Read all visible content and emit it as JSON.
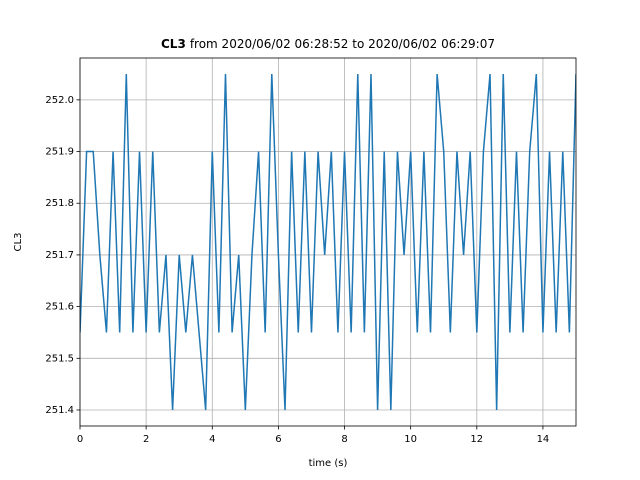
{
  "chart_data": {
    "type": "line",
    "title": [
      "CL3",
      "from 2020/06/02 06:28:52 to 2020/06/02 06:29:07"
    ],
    "xlabel": "time (s)",
    "ylabel": "CL3",
    "x": [
      0,
      0.2,
      0.4,
      0.6,
      0.8,
      1,
      1.2,
      1.4,
      1.6,
      1.8,
      2,
      2.2,
      2.4,
      2.6,
      2.8,
      3,
      3.2,
      3.4,
      3.6,
      3.8,
      4,
      4.2,
      4.4,
      4.6,
      4.8,
      5,
      5.2,
      5.4,
      5.6,
      5.8,
      6,
      6.2,
      6.4,
      6.6,
      6.8,
      7,
      7.2,
      7.4,
      7.6,
      7.8,
      8,
      8.2,
      8.4,
      8.6,
      8.8,
      9,
      9.2,
      9.4,
      9.6,
      9.8,
      10,
      10.2,
      10.4,
      10.6,
      10.8,
      11,
      11.2,
      11.4,
      11.6,
      11.8,
      12,
      12.2,
      12.4,
      12.6,
      12.8,
      13,
      13.2,
      13.4,
      13.6,
      13.8,
      14,
      14.2,
      14.4,
      14.6,
      14.8,
      15
    ],
    "series": [
      {
        "name": "CL3",
        "color": "#1f77b4",
        "values": [
          251.55,
          251.9,
          251.9,
          251.7,
          251.55,
          251.9,
          251.55,
          252.05,
          251.55,
          251.9,
          251.55,
          251.9,
          251.55,
          251.7,
          251.4,
          251.7,
          251.55,
          251.7,
          251.55,
          251.4,
          251.9,
          251.55,
          252.05,
          251.55,
          251.7,
          251.4,
          251.7,
          251.9,
          251.55,
          252.05,
          251.7,
          251.4,
          251.9,
          251.55,
          251.9,
          251.55,
          251.9,
          251.7,
          251.9,
          251.55,
          251.9,
          251.55,
          252.05,
          251.55,
          252.05,
          251.4,
          251.9,
          251.4,
          251.9,
          251.7,
          251.9,
          251.55,
          251.9,
          251.55,
          252.05,
          251.9,
          251.55,
          251.9,
          251.7,
          251.9,
          251.55,
          251.9,
          252.05,
          251.4,
          252.05,
          251.55,
          251.9,
          251.55,
          251.9,
          252.05,
          251.55,
          251.9,
          251.55,
          251.9,
          251.55,
          252.05
        ]
      }
    ],
    "xlim": [
      0,
      15
    ],
    "xticks": [
      0,
      2,
      4,
      6,
      8,
      10,
      12,
      14
    ],
    "ylim": [
      251.369,
      252.081
    ],
    "yticks": [
      251.4,
      251.5,
      251.6,
      251.7,
      251.8,
      251.9,
      {
        "value": 252,
        "label": "252.0"
      }
    ],
    "grid": true
  }
}
